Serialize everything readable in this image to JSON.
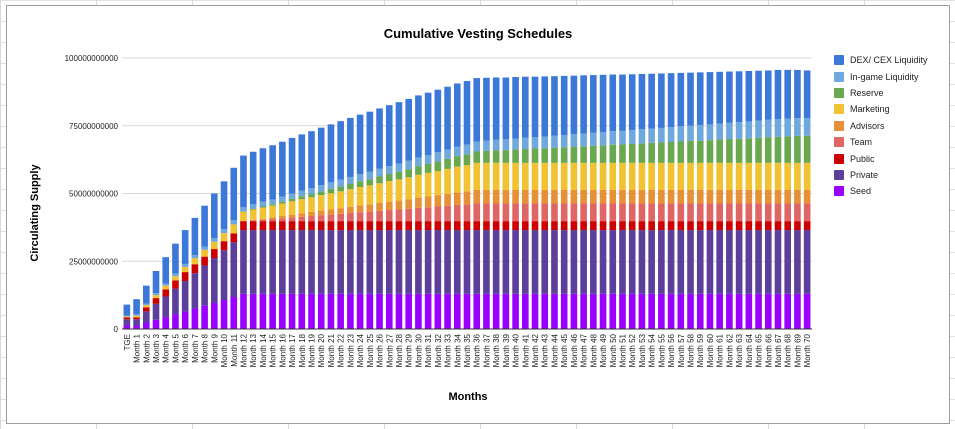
{
  "chart_data": {
    "type": "bar",
    "stacked": true,
    "title": "Cumulative Vesting Schedules",
    "xlabel": "Months",
    "ylabel": "Circulating Supply",
    "ylim": [
      0,
      100000000000
    ],
    "yticks": [
      "0",
      "25000000000",
      "50000000000",
      "75000000000",
      "100000000000"
    ],
    "ytick_values": [
      0,
      25000000000,
      50000000000,
      75000000000,
      100000000000
    ],
    "grid": true,
    "legend_position": "right",
    "categories": [
      "TGE",
      "Month 1",
      "Month 2",
      "Month 3",
      "Month 4",
      "Month 5",
      "Month 6",
      "Month 7",
      "Month 8",
      "Month 9",
      "Month 10",
      "Month 11",
      "Month 12",
      "Month 13",
      "Month 14",
      "Month 15",
      "Month 16",
      "Month 17",
      "Month 18",
      "Month 19",
      "Month 20",
      "Month 21",
      "Month 22",
      "Month 23",
      "Month 24",
      "Month 25",
      "Month 26",
      "Month 27",
      "Month 28",
      "Month 29",
      "Month 30",
      "Month 31",
      "Month 32",
      "Month 33",
      "Month 34",
      "Month 35",
      "Month 36",
      "Month 37",
      "Month 38",
      "Month 39",
      "Month 40",
      "Month 41",
      "Month 42",
      "Month 43",
      "Month 44",
      "Month 45",
      "Month 46",
      "Month 47",
      "Month 48",
      "Month 49",
      "Month 50",
      "Month 51",
      "Month 52",
      "Month 53",
      "Month 54",
      "Month 55",
      "Month 56",
      "Month 57",
      "Month 58",
      "Month 59",
      "Month 60",
      "Month 61",
      "Month 62",
      "Month 63",
      "Month 64",
      "Month 65",
      "Month 66",
      "Month 67",
      "Month 68",
      "Month 69",
      "Month 70"
    ],
    "unit_multiplier": 1000000000,
    "series_note": "values below are in billions (multiply by unit_multiplier)",
    "series": [
      {
        "name": "Seed",
        "color": "#9900ff",
        "values": [
          1.3,
          1.3,
          2.4,
          3.4,
          4.4,
          5.5,
          6.5,
          7.6,
          8.6,
          9.6,
          10.7,
          11.8,
          13,
          13,
          13,
          13,
          13,
          13,
          13,
          13,
          13,
          13,
          13,
          13,
          13,
          13,
          13,
          13,
          13,
          13,
          13,
          13,
          13,
          13,
          13,
          13,
          13,
          13,
          13,
          13,
          13,
          13,
          13,
          13,
          13,
          13,
          13,
          13,
          13,
          13,
          13,
          13,
          13,
          13,
          13,
          13,
          13,
          13,
          13,
          13,
          13,
          13,
          13,
          13,
          13,
          13,
          13,
          13,
          13,
          13,
          13
        ]
      },
      {
        "name": "Private",
        "color": "#5b3f9a",
        "values": [
          2.3,
          2.3,
          4.1,
          5.9,
          7.6,
          9.4,
          11.2,
          13,
          14.8,
          16.6,
          18.4,
          20.2,
          23.5,
          23.5,
          23.5,
          23.5,
          23.5,
          23.5,
          23.5,
          23.5,
          23.5,
          23.5,
          23.5,
          23.5,
          23.5,
          23.5,
          23.5,
          23.5,
          23.5,
          23.5,
          23.5,
          23.5,
          23.5,
          23.5,
          23.5,
          23.5,
          23.5,
          23.5,
          23.5,
          23.5,
          23.5,
          23.5,
          23.5,
          23.5,
          23.5,
          23.5,
          23.5,
          23.5,
          23.5,
          23.5,
          23.5,
          23.5,
          23.5,
          23.5,
          23.5,
          23.5,
          23.5,
          23.5,
          23.5,
          23.5,
          23.5,
          23.5,
          23.5,
          23.5,
          23.5,
          23.5,
          23.5,
          23.5,
          23.5,
          23.5,
          23.5
        ]
      },
      {
        "name": "Public",
        "color": "#cc0000",
        "values": [
          0.7,
          0.7,
          1.5,
          2.1,
          2.6,
          3,
          3.3,
          3.3,
          3.3,
          3.3,
          3.3,
          3.3,
          3.3,
          3.3,
          3.3,
          3.3,
          3.3,
          3.3,
          3.3,
          3.3,
          3.3,
          3.3,
          3.3,
          3.3,
          3.3,
          3.3,
          3.3,
          3.3,
          3.3,
          3.3,
          3.3,
          3.3,
          3.3,
          3.3,
          3.3,
          3.3,
          3.3,
          3.3,
          3.3,
          3.3,
          3.3,
          3.3,
          3.3,
          3.3,
          3.3,
          3.3,
          3.3,
          3.3,
          3.3,
          3.3,
          3.3,
          3.3,
          3.3,
          3.3,
          3.3,
          3.3,
          3.3,
          3.3,
          3.3,
          3.3,
          3.3,
          3.3,
          3.3,
          3.3,
          3.3,
          3.3,
          3.3,
          3.3,
          3.3,
          3.3,
          3.3
        ]
      },
      {
        "name": "Team",
        "color": "#e06666",
        "values": [
          0,
          0,
          0,
          0,
          0,
          0,
          0,
          0,
          0,
          0,
          0,
          0,
          0,
          0.3,
          0.5,
          0.8,
          1.1,
          1.4,
          1.6,
          1.9,
          2.2,
          2.4,
          2.7,
          3,
          3.3,
          3.5,
          3.8,
          4.1,
          4.3,
          4.6,
          4.9,
          5.1,
          5.4,
          5.7,
          6,
          6.2,
          6.5,
          6.5,
          6.5,
          6.5,
          6.5,
          6.5,
          6.5,
          6.5,
          6.5,
          6.5,
          6.5,
          6.5,
          6.5,
          6.5,
          6.5,
          6.5,
          6.5,
          6.5,
          6.5,
          6.5,
          6.5,
          6.5,
          6.5,
          6.5,
          6.5,
          6.5,
          6.5,
          6.5,
          6.5,
          6.5,
          6.5,
          6.5,
          6.5,
          6.5,
          6.5
        ]
      },
      {
        "name": "Advisors",
        "color": "#e69138",
        "values": [
          0,
          0,
          0,
          0,
          0,
          0,
          0,
          0,
          0,
          0,
          0,
          0,
          0,
          0.2,
          0.4,
          0.6,
          0.8,
          1,
          1.3,
          1.5,
          1.7,
          1.9,
          2.1,
          2.3,
          2.5,
          2.7,
          2.9,
          3.1,
          3.3,
          3.5,
          3.8,
          4,
          4.2,
          4.4,
          4.6,
          4.8,
          5,
          5,
          5,
          5,
          5,
          5,
          5,
          5,
          5,
          5,
          5,
          5,
          5,
          5,
          5,
          5,
          5,
          5,
          5,
          5,
          5,
          5,
          5,
          5,
          5,
          5,
          5,
          5,
          5,
          5,
          5,
          5,
          5,
          5,
          5
        ]
      },
      {
        "name": "Marketing",
        "color": "#f1c232",
        "values": [
          0.3,
          0.6,
          0.8,
          1.1,
          1.4,
          1.6,
          1.9,
          2.2,
          2.5,
          2.7,
          3,
          3.3,
          3.5,
          3.8,
          4.1,
          4.3,
          4.6,
          4.9,
          5.2,
          5.4,
          5.7,
          6,
          6.2,
          6.5,
          6.8,
          7,
          7.3,
          7.6,
          7.8,
          8.1,
          8.4,
          8.7,
          8.9,
          9.2,
          9.5,
          9.7,
          10,
          10,
          10,
          10,
          10,
          10,
          10,
          10,
          10,
          10,
          10,
          10,
          10,
          10,
          10,
          10,
          10,
          10,
          10,
          10,
          10,
          10,
          10,
          10,
          10,
          10,
          10,
          10,
          10,
          10,
          10,
          10,
          10,
          10,
          10
        ]
      },
      {
        "name": "Reserve",
        "color": "#6aa84f",
        "values": [
          0,
          0,
          0,
          0,
          0,
          0,
          0,
          0,
          0,
          0,
          0,
          0,
          0,
          0.2,
          0.4,
          0.5,
          0.7,
          0.9,
          1.1,
          1.2,
          1.4,
          1.6,
          1.8,
          1.9,
          2.1,
          2.3,
          2.5,
          2.6,
          2.8,
          3,
          3.2,
          3.3,
          3.5,
          3.7,
          3.9,
          4,
          4.2,
          4.4,
          4.6,
          4.7,
          4.9,
          5.1,
          5.3,
          5.4,
          5.6,
          5.8,
          6,
          6.1,
          6.3,
          6.5,
          6.7,
          6.8,
          7,
          7.2,
          7.4,
          7.5,
          7.7,
          7.9,
          8.1,
          8.2,
          8.4,
          8.6,
          8.8,
          8.9,
          9.1,
          9.3,
          9.5,
          9.6,
          9.8,
          10,
          10
        ]
      },
      {
        "name": "In-game Liquidity",
        "color": "#6fa8dc",
        "values": [
          0.4,
          0.5,
          0.6,
          0.7,
          0.8,
          0.9,
          1,
          1.1,
          1.2,
          1.3,
          1.4,
          1.5,
          1.6,
          1.7,
          1.8,
          1.8,
          1.9,
          2,
          2.1,
          2.2,
          2.3,
          2.4,
          2.5,
          2.6,
          2.6,
          2.7,
          2.8,
          2.9,
          3,
          3.1,
          3.2,
          3.3,
          3.4,
          3.4,
          3.5,
          3.6,
          3.7,
          3.8,
          3.9,
          4,
          4.1,
          4.2,
          4.2,
          4.3,
          4.4,
          4.5,
          4.6,
          4.7,
          4.8,
          4.9,
          5,
          5,
          5.1,
          5.2,
          5.3,
          5.4,
          5.5,
          5.6,
          5.7,
          5.8,
          5.8,
          5.9,
          6,
          6.1,
          6.2,
          6.3,
          6.4,
          6.5,
          6.5,
          6.5,
          6.5
        ]
      },
      {
        "name": "DEX/ CEX Liquidity",
        "color": "#3c78d8",
        "values": [
          4,
          5.6,
          6.6,
          8.2,
          9.7,
          11.1,
          12.6,
          13.8,
          15.1,
          16.5,
          17.7,
          19.4,
          19.1,
          19.4,
          19.7,
          20,
          20.2,
          20.5,
          20.7,
          21,
          21.2,
          21.4,
          21.6,
          21.8,
          22,
          22.2,
          22.3,
          22.5,
          22.7,
          22.8,
          22.9,
          23,
          23.1,
          23.2,
          23.3,
          23.4,
          23.4,
          23.2,
          23,
          22.8,
          22.7,
          22.5,
          22.3,
          22.2,
          22,
          21.8,
          21.6,
          21.5,
          21.3,
          21.1,
          20.9,
          20.8,
          20.6,
          20.4,
          20.2,
          20.1,
          19.9,
          19.7,
          19.5,
          19.4,
          19.3,
          19.1,
          18.9,
          18.8,
          18.6,
          18.4,
          18.2,
          18.2,
          18,
          17.8,
          17.6
        ]
      }
    ]
  }
}
